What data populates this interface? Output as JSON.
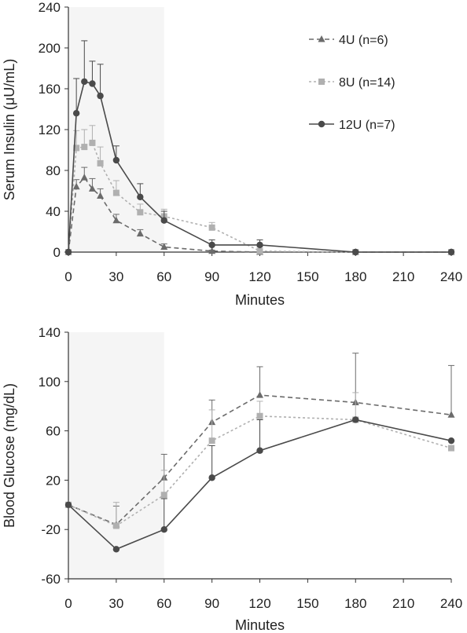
{
  "chart_data": [
    {
      "type": "line",
      "xlabel": "Minutes",
      "ylabel": "Serum Insulin (μU/mL)",
      "xlim": [
        0,
        240
      ],
      "ylim": [
        0,
        240
      ],
      "x_ticks": [
        0,
        30,
        60,
        90,
        120,
        150,
        180,
        210,
        240
      ],
      "y_ticks": [
        0,
        40,
        80,
        120,
        160,
        200,
        240
      ],
      "shaded_x_range": [
        0,
        60
      ],
      "legend_position": "top-right",
      "series": [
        {
          "name": "4U (n=6)",
          "color": "#6b6b6b",
          "marker": "triangle",
          "dash": "dashed",
          "x": [
            0,
            5,
            10,
            15,
            20,
            30,
            45,
            60,
            90,
            120,
            180,
            240
          ],
          "y": [
            0,
            64,
            73,
            62,
            55,
            31,
            18,
            5,
            1,
            0,
            0,
            0
          ],
          "err": [
            0,
            7,
            10,
            10,
            7,
            6,
            4,
            3,
            1,
            0,
            0,
            0
          ]
        },
        {
          "name": "8U (n=14)",
          "color": "#b0b0b0",
          "marker": "square",
          "dash": "dotted",
          "x": [
            0,
            5,
            10,
            15,
            20,
            30,
            45,
            60,
            90,
            120,
            180,
            240
          ],
          "y": [
            0,
            102,
            103,
            107,
            87,
            58,
            39,
            35,
            24,
            1,
            0,
            0
          ],
          "err": [
            0,
            17,
            17,
            17,
            16,
            12,
            8,
            7,
            5,
            4,
            2,
            0
          ]
        },
        {
          "name": "12U (n=7)",
          "color": "#4a4a4a",
          "marker": "circle",
          "dash": "solid",
          "x": [
            0,
            5,
            10,
            15,
            20,
            30,
            45,
            60,
            90,
            120,
            180,
            240
          ],
          "y": [
            0,
            136,
            167,
            165,
            153,
            90,
            54,
            31,
            7,
            7,
            0,
            0
          ],
          "err": [
            0,
            34,
            40,
            22,
            31,
            14,
            13,
            9,
            5,
            5,
            1,
            0
          ]
        }
      ]
    },
    {
      "type": "line",
      "xlabel": "Minutes",
      "ylabel": "Blood Glucose (mg/dL)",
      "xlim": [
        0,
        240
      ],
      "ylim": [
        -60,
        140
      ],
      "x_ticks": [
        0,
        30,
        60,
        90,
        120,
        150,
        180,
        210,
        240
      ],
      "y_ticks": [
        -60,
        -20,
        20,
        60,
        100,
        140
      ],
      "shaded_x_range": [
        0,
        60
      ],
      "series": [
        {
          "name": "4U (n=6)",
          "color": "#6b6b6b",
          "marker": "triangle",
          "dash": "dashed",
          "x": [
            0,
            30,
            60,
            90,
            120,
            180,
            240
          ],
          "y": [
            0,
            -16,
            22,
            67,
            89,
            83,
            73
          ],
          "err": [
            0,
            15,
            19,
            18,
            23,
            40,
            40
          ]
        },
        {
          "name": "8U (n=14)",
          "color": "#b0b0b0",
          "marker": "square",
          "dash": "dotted",
          "x": [
            0,
            30,
            60,
            90,
            120,
            180,
            240
          ],
          "y": [
            0,
            -17,
            8,
            52,
            72,
            69,
            46
          ],
          "err": [
            0,
            19,
            20,
            25,
            12,
            22,
            0
          ]
        },
        {
          "name": "12U (n=7)",
          "color": "#4a4a4a",
          "marker": "circle",
          "dash": "solid",
          "x": [
            0,
            30,
            60,
            90,
            120,
            180,
            240
          ],
          "y": [
            0,
            -36,
            -20,
            22,
            44,
            69,
            52
          ],
          "err": [
            0,
            0,
            25,
            26,
            25,
            0,
            0
          ]
        }
      ]
    }
  ]
}
